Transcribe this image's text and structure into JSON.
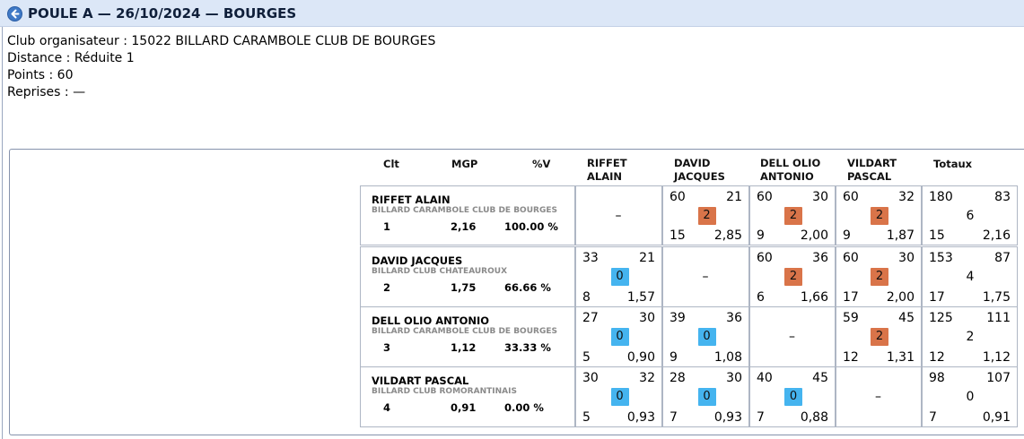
{
  "header": {
    "title": "POULE A — 26/10/2024 — BOURGES",
    "back_icon": "back-arrow-icon",
    "accent_color": "#3f79c6",
    "background": "#dce7f7"
  },
  "info": {
    "club": "Club organisateur : 15022 BILLARD CARAMBOLE CLUB DE BOURGES",
    "distance": "Distance : Réduite 1",
    "points": "Points : 60",
    "reprises": "Reprises : —"
  },
  "table": {
    "headers": {
      "clt": "Clt",
      "mgp": "MGP",
      "pct": "%V",
      "p1": [
        "RIFFET",
        "ALAIN"
      ],
      "p2": [
        "DAVID",
        "JACQUES"
      ],
      "p3": [
        "DELL OLIO",
        "ANTONIO"
      ],
      "p4": [
        "VILDART",
        "PASCAL"
      ],
      "totals": "Totaux"
    },
    "badge_colors": {
      "win": "#d97449",
      "loss": "#45b4ef"
    },
    "rows": [
      {
        "name": "RIFFET ALAIN",
        "club": "BILLARD CARAMBOLE CLUB DE BOURGES",
        "clt": "1",
        "mgp": "2,16",
        "pct": "100.00 %",
        "cells": [
          {
            "self": true,
            "dash": "–"
          },
          {
            "pts": "60",
            "opp": "21",
            "mp": "2",
            "result": "win",
            "rep": "15",
            "avg": "2,85"
          },
          {
            "pts": "60",
            "opp": "30",
            "mp": "2",
            "result": "win",
            "rep": "9",
            "avg": "2,00"
          },
          {
            "pts": "60",
            "opp": "32",
            "mp": "2",
            "result": "win",
            "rep": "9",
            "avg": "1,87"
          }
        ],
        "totals": {
          "pts": "180",
          "opp": "83",
          "mp": "6",
          "rep": "15",
          "avg": "2,16"
        }
      },
      {
        "name": "DAVID JACQUES",
        "club": "BILLARD CLUB CHATEAUROUX",
        "clt": "2",
        "mgp": "1,75",
        "pct": "66.66 %",
        "cells": [
          {
            "pts": "33",
            "opp": "21",
            "mp": "0",
            "result": "loss",
            "rep": "8",
            "avg": "1,57"
          },
          {
            "self": true,
            "dash": "–"
          },
          {
            "pts": "60",
            "opp": "36",
            "mp": "2",
            "result": "win",
            "rep": "6",
            "avg": "1,66"
          },
          {
            "pts": "60",
            "opp": "30",
            "mp": "2",
            "result": "win",
            "rep": "17",
            "avg": "2,00"
          }
        ],
        "totals": {
          "pts": "153",
          "opp": "87",
          "mp": "4",
          "rep": "17",
          "avg": "1,75"
        }
      },
      {
        "name": "DELL OLIO ANTONIO",
        "club": "BILLARD CARAMBOLE CLUB DE BOURGES",
        "clt": "3",
        "mgp": "1,12",
        "pct": "33.33 %",
        "cells": [
          {
            "pts": "27",
            "opp": "30",
            "mp": "0",
            "result": "loss",
            "rep": "5",
            "avg": "0,90"
          },
          {
            "pts": "39",
            "opp": "36",
            "mp": "0",
            "result": "loss",
            "rep": "9",
            "avg": "1,08"
          },
          {
            "self": true,
            "dash": "–"
          },
          {
            "pts": "59",
            "opp": "45",
            "mp": "2",
            "result": "win",
            "rep": "12",
            "avg": "1,31"
          }
        ],
        "totals": {
          "pts": "125",
          "opp": "111",
          "mp": "2",
          "rep": "12",
          "avg": "1,12"
        }
      },
      {
        "name": "VILDART PASCAL",
        "club": "BILLARD CLUB ROMORANTINAIS",
        "clt": "4",
        "mgp": "0,91",
        "pct": "0.00 %",
        "cells": [
          {
            "pts": "30",
            "opp": "32",
            "mp": "0",
            "result": "loss",
            "rep": "5",
            "avg": "0,93"
          },
          {
            "pts": "28",
            "opp": "30",
            "mp": "0",
            "result": "loss",
            "rep": "7",
            "avg": "0,93"
          },
          {
            "pts": "40",
            "opp": "45",
            "mp": "0",
            "result": "loss",
            "rep": "7",
            "avg": "0,88"
          },
          {
            "self": true,
            "dash": "–"
          }
        ],
        "totals": {
          "pts": "98",
          "opp": "107",
          "mp": "0",
          "rep": "7",
          "avg": "0,91"
        }
      }
    ]
  }
}
